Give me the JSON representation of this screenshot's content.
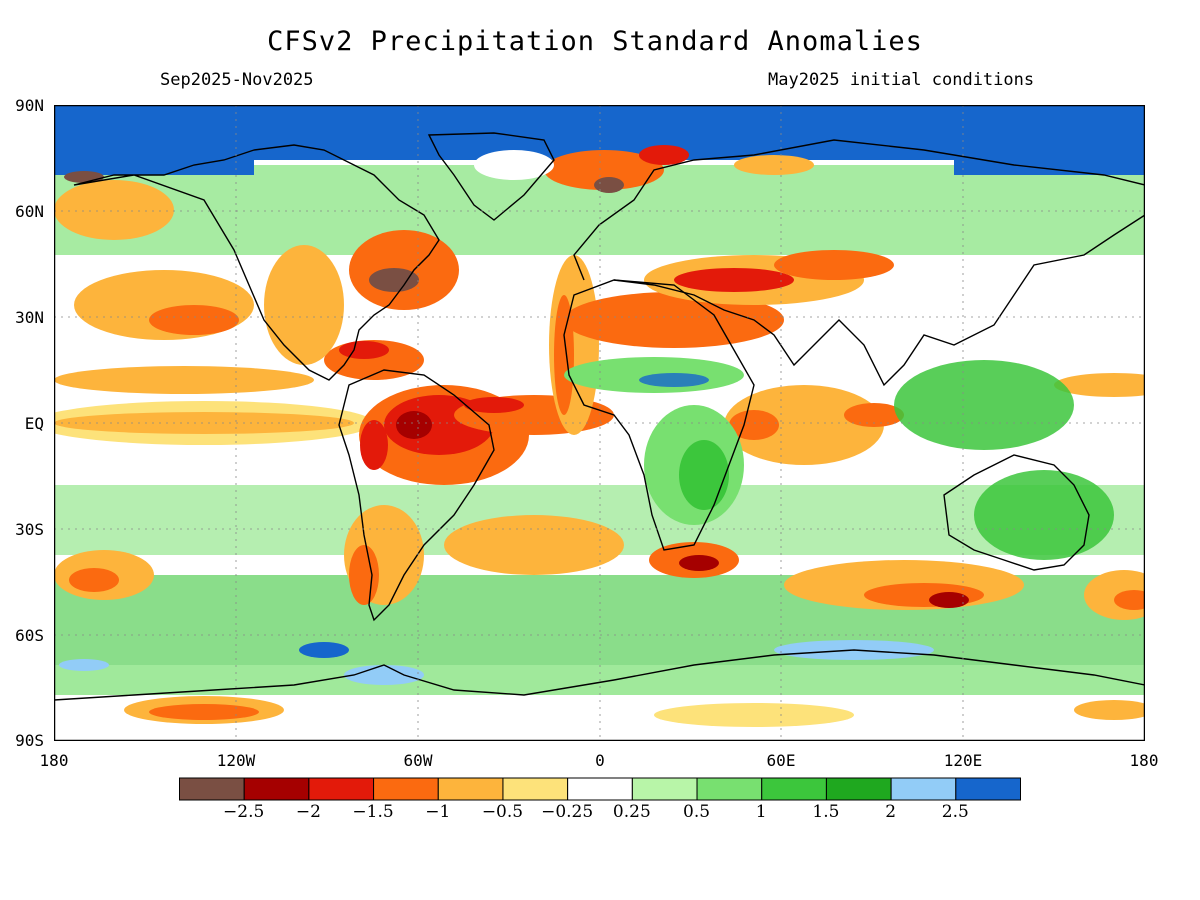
{
  "title": "CFSv2 Precipitation Standard Anomalies",
  "period": "Sep2025-Nov2025",
  "init": "May2025 initial conditions",
  "lat_labels": [
    "90N",
    "60N",
    "30N",
    "EQ",
    "30S",
    "60S",
    "90S"
  ],
  "lon_labels": [
    "180",
    "120W",
    "60W",
    "0",
    "60E",
    "120E",
    "180"
  ],
  "legend": {
    "labels": [
      "-2.5",
      "-2",
      "-1.5",
      "-1",
      "-0.5",
      "-0.25",
      "0.25",
      "0.5",
      "1",
      "1.5",
      "2",
      "2.5"
    ],
    "colors": [
      "#7a4f43",
      "#a50000",
      "#e31a0a",
      "#fb6a10",
      "#fdb43c",
      "#fde27a",
      "#ffffff",
      "#b8f5a8",
      "#78e070",
      "#3cc63c",
      "#1fa81f",
      "#92ccf7",
      "#1666cc"
    ]
  },
  "colors": {
    "ocean_arctic": "#1666cc",
    "coast": "#000000"
  }
}
